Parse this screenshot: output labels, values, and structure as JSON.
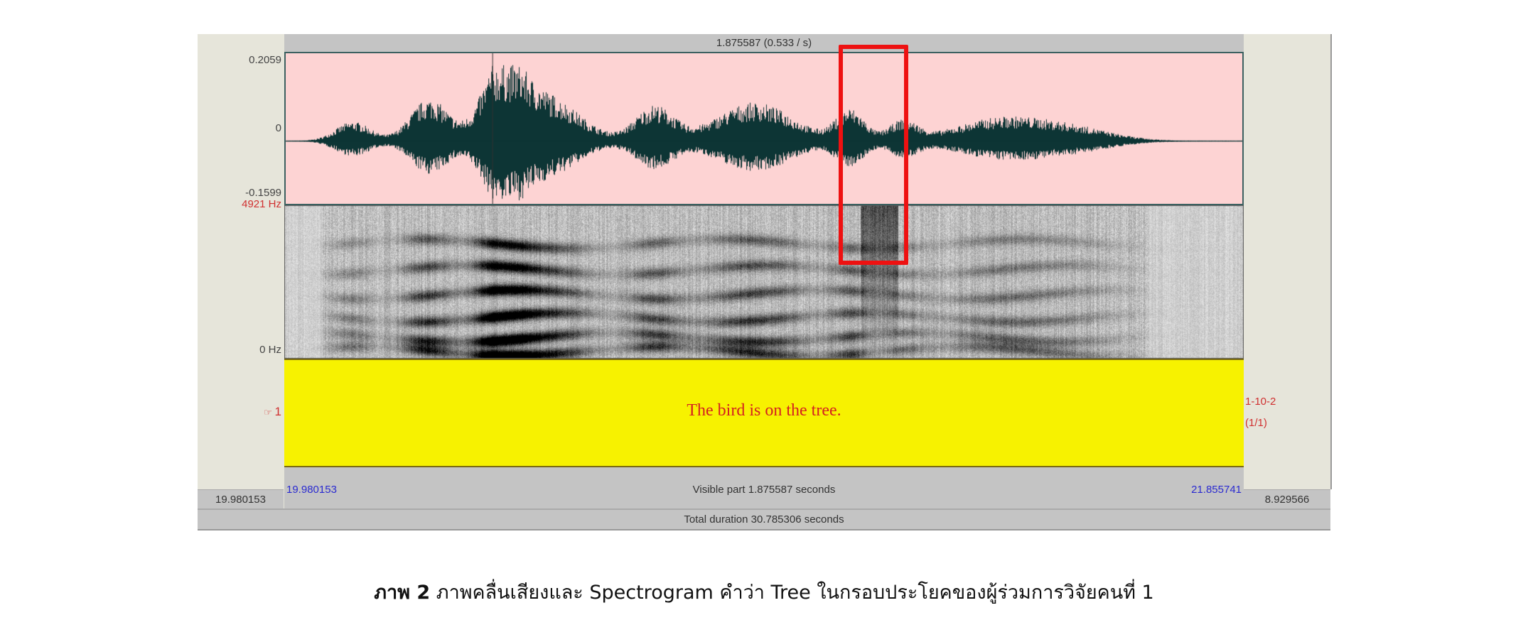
{
  "top_bar": {
    "selection_duration": "1.875587 (0.533 / s)"
  },
  "waveform": {
    "y_max": "0.2059",
    "y_zero": "0",
    "y_min": "-0.1599",
    "color": "#0d3535",
    "background": "#fdd3d3"
  },
  "spectrogram": {
    "freq_max": "4921 Hz",
    "freq_min": "0 Hz"
  },
  "tier": {
    "marker_icon": "pointing-hand-icon",
    "number": "1",
    "text": "The bird is on the tree.",
    "name": "1-10-2",
    "count": "(1/1)",
    "background": "#f7f200"
  },
  "bottom": {
    "left_hidden": "19.980153",
    "visible_start": "19.980153",
    "visible_label": "Visible part 1.875587 seconds",
    "visible_end": "21.855741",
    "right_hidden": "8.929566",
    "total": "Total duration 30.785306 seconds"
  },
  "highlight": {
    "color": "#ee1111"
  },
  "caption": {
    "label": "ภาพ 2",
    "text": "ภาพคลื่นเสียงและ Spectrogram คำว่า Tree ในกรอบประโยคของผู้ร่วมการวิจัยคนที่ 1"
  }
}
